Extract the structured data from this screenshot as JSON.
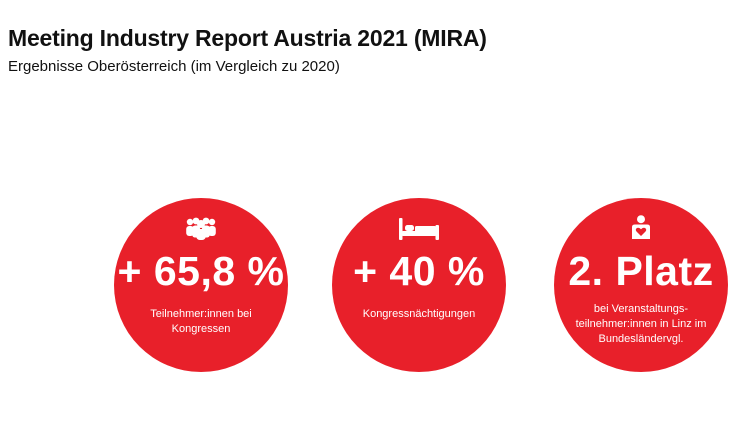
{
  "header": {
    "title": "Meeting Industry Report Austria 2021 (MIRA)",
    "subtitle": "Ergebnisse Oberösterreich (im Vergleich zu 2020)"
  },
  "stats": [
    {
      "value": "+ 65,8 %",
      "caption_lines": [
        "Teilnehmer:innen bei",
        "Kongressen"
      ],
      "icon": "people-group-icon"
    },
    {
      "value": "+ 40 %",
      "caption_lines": [
        "Kongressnächtigungen"
      ],
      "icon": "bed-icon"
    },
    {
      "value": "2. Platz",
      "caption_lines": [
        "bei Veranstaltungs-",
        "teilnehmer:innen in Linz im",
        "Bundesländervgl."
      ],
      "icon": "person-heart-icon"
    }
  ],
  "colors": {
    "circle": "#e8202a",
    "text_on_circle": "#ffffff",
    "title_text": "#111111"
  }
}
